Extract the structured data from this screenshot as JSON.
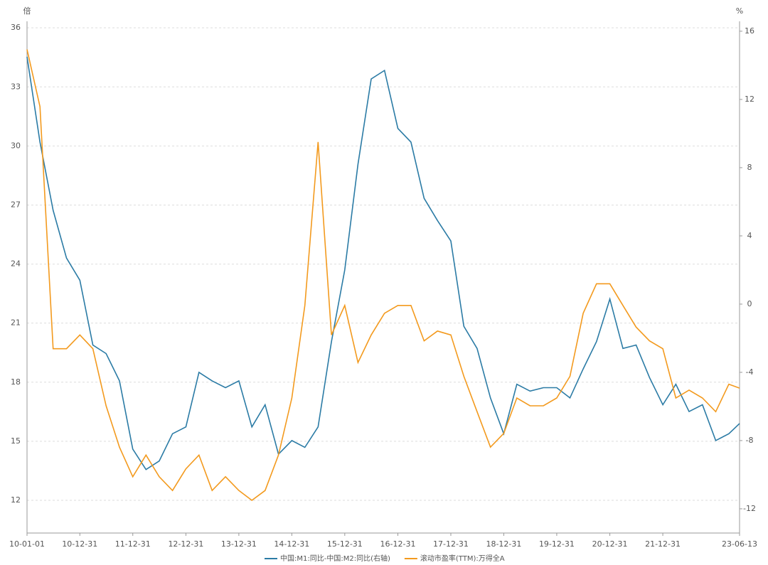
{
  "chart_data": {
    "type": "line",
    "y_axis_label": "倍",
    "y2_axis_label": "%",
    "x": [
      "10-01-01",
      "10-03-31",
      "10-06-30",
      "10-09-30",
      "10-12-31",
      "11-03-31",
      "11-06-30",
      "11-09-30",
      "11-12-31",
      "12-03-31",
      "12-06-30",
      "12-09-30",
      "12-12-31",
      "13-03-31",
      "13-06-30",
      "13-09-30",
      "13-12-31",
      "14-03-31",
      "14-06-30",
      "14-09-30",
      "14-12-31",
      "15-03-31",
      "15-06-30",
      "15-09-30",
      "15-12-31",
      "16-03-31",
      "16-06-30",
      "16-09-30",
      "16-12-31",
      "17-03-31",
      "17-06-30",
      "17-09-30",
      "17-12-31",
      "18-03-31",
      "18-06-30",
      "18-09-30",
      "18-12-31",
      "19-03-31",
      "19-06-30",
      "19-09-30",
      "19-12-31",
      "20-03-31",
      "20-06-30",
      "20-09-30",
      "20-12-31",
      "21-03-31",
      "21-06-30",
      "21-09-30",
      "21-12-31",
      "22-03-31",
      "22-06-30",
      "22-09-30",
      "22-12-31",
      "23-03-31",
      "23-06-13"
    ],
    "series": [
      {
        "name": "中国:M1:同比-中国:M2:同比(右轴)",
        "color": "#2b7ba5",
        "axis": "y2",
        "values": [
          14.5,
          9.5,
          5.5,
          2.7,
          1.4,
          -2.4,
          -2.9,
          -4.5,
          -8.5,
          -9.7,
          -9.2,
          -7.6,
          -7.2,
          -4.0,
          -4.5,
          -4.9,
          -4.5,
          -7.2,
          -5.9,
          -8.8,
          -8.0,
          -8.4,
          -7.2,
          -2.2,
          2.0,
          8.2,
          13.2,
          13.7,
          10.3,
          9.5,
          6.2,
          4.9,
          3.7,
          -1.3,
          -2.6,
          -5.5,
          -7.6,
          -4.7,
          -5.1,
          -4.9,
          -4.9,
          -5.5,
          -3.8,
          -2.2,
          0.3,
          -2.6,
          -2.4,
          -4.3,
          -5.9,
          -4.7,
          -6.3,
          -5.9,
          -8.0,
          -7.6,
          -7.0
        ]
      },
      {
        "name": "滚动市盈率(TTM):万得全A",
        "color": "#f39a1e",
        "values": [
          34.9,
          32.0,
          19.7,
          19.7,
          20.4,
          19.7,
          16.8,
          14.7,
          13.2,
          14.3,
          13.2,
          12.5,
          13.6,
          14.3,
          12.5,
          13.2,
          12.5,
          12.0,
          12.5,
          14.3,
          17.2,
          21.9,
          30.2,
          20.4,
          21.9,
          19.0,
          20.4,
          21.5,
          21.9,
          21.9,
          20.1,
          20.6,
          20.4,
          18.3,
          16.5,
          14.7,
          15.4,
          17.2,
          16.8,
          16.8,
          17.2,
          18.3,
          21.5,
          23.0,
          23.0,
          21.9,
          20.8,
          20.1,
          19.7,
          17.2,
          17.6,
          17.2,
          16.5,
          17.9,
          17.7
        ]
      }
    ],
    "xlim": [
      "10-01-01",
      "23-06-13"
    ],
    "xticks": [
      "10-01-01",
      "10-12-31",
      "11-12-31",
      "12-12-31",
      "13-12-31",
      "14-12-31",
      "15-12-31",
      "16-12-31",
      "17-12-31",
      "18-12-31",
      "19-12-31",
      "20-12-31",
      "21-12-31",
      "23-06-13"
    ],
    "ylim": [
      10.34,
      36.33
    ],
    "yticks": [
      12,
      15,
      18,
      21,
      24,
      27,
      30,
      33,
      36
    ],
    "y2lim": [
      -13.42,
      16.58
    ],
    "y2ticks": [
      -12,
      -8,
      -4,
      0,
      4,
      8,
      12,
      16
    ],
    "grid": true,
    "legend": "bottom"
  }
}
